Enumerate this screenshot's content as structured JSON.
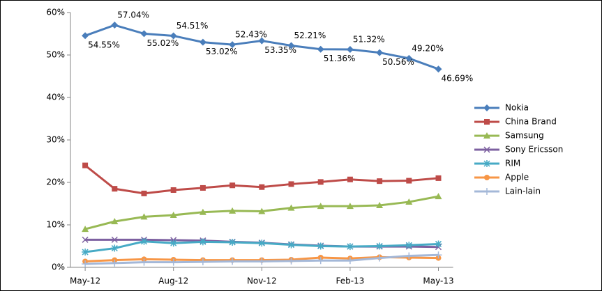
{
  "chart_data": {
    "type": "line",
    "categories": [
      "May-12",
      null,
      null,
      "Aug-12",
      null,
      null,
      "Nov-12",
      null,
      null,
      "Feb-13",
      null,
      null,
      "May-13"
    ],
    "series": [
      {
        "name": "Nokia",
        "color": "#4a7ebb",
        "marker": "diamond",
        "values": [
          54.55,
          57.04,
          55.02,
          54.51,
          53.02,
          52.43,
          53.35,
          52.21,
          51.36,
          51.32,
          50.56,
          49.2,
          46.69
        ],
        "value_labels": [
          "54.55%",
          "57.04%",
          "55.02%",
          "54.51%",
          "53.02%",
          "52.43%",
          "53.35%",
          "52.21%",
          "51.36%",
          "51.32%",
          "50.56%",
          "49.20%",
          "46.69%"
        ]
      },
      {
        "name": "China Brand",
        "color": "#be4b48",
        "marker": "square",
        "values": [
          24.0,
          18.5,
          17.4,
          18.2,
          18.7,
          19.3,
          18.9,
          19.6,
          20.1,
          20.7,
          20.3,
          20.4,
          21.0
        ]
      },
      {
        "name": "Samsung",
        "color": "#98b954",
        "marker": "triangle",
        "values": [
          9.0,
          10.8,
          11.9,
          12.3,
          13.0,
          13.3,
          13.2,
          14.0,
          14.4,
          14.4,
          14.6,
          15.4,
          16.7
        ]
      },
      {
        "name": "Sony Ericsson",
        "color": "#7d60a0",
        "marker": "x",
        "values": [
          6.5,
          6.5,
          6.5,
          6.4,
          6.3,
          6.0,
          5.8,
          5.4,
          5.1,
          4.9,
          4.9,
          4.9,
          4.8
        ]
      },
      {
        "name": "RIM",
        "color": "#46aac5",
        "marker": "star",
        "values": [
          3.6,
          4.5,
          6.1,
          5.7,
          6.0,
          5.9,
          5.7,
          5.3,
          5.0,
          4.9,
          5.0,
          5.2,
          5.5
        ]
      },
      {
        "name": "Apple",
        "color": "#f79646",
        "marker": "circle",
        "values": [
          1.4,
          1.7,
          1.9,
          1.8,
          1.7,
          1.7,
          1.7,
          1.8,
          2.3,
          2.1,
          2.4,
          2.3,
          2.2
        ]
      },
      {
        "name": "Lain-lain",
        "color": "#a4b8d8",
        "marker": "plus",
        "values": [
          0.8,
          1.0,
          1.2,
          1.2,
          1.3,
          1.4,
          1.4,
          1.5,
          1.6,
          1.6,
          2.2,
          2.7,
          2.9
        ]
      }
    ],
    "ylim": [
      0,
      60
    ],
    "yticks": [
      {
        "value": 0,
        "label": "0%"
      },
      {
        "value": 10,
        "label": "10%"
      },
      {
        "value": 20,
        "label": "20%"
      },
      {
        "value": 30,
        "label": "30%"
      },
      {
        "value": 40,
        "label": "40%"
      },
      {
        "value": 50,
        "label": "50%"
      },
      {
        "value": 60,
        "label": "60%"
      }
    ],
    "grid": false,
    "legend": "right"
  }
}
